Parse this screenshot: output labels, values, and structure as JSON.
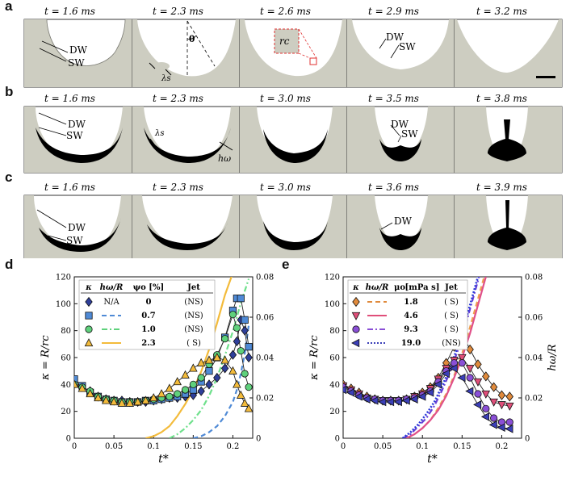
{
  "colors": {
    "liquid": "#cdcdc1",
    "film": "#000000",
    "frame": "#333333"
  },
  "panels": {
    "a": {
      "letter": "a",
      "frames": [
        {
          "time": "t = 1.6 ms",
          "labels": [
            "DW",
            "SW"
          ]
        },
        {
          "time": "t = 2.3 ms",
          "labels": [
            "θ",
            "λs"
          ]
        },
        {
          "time": "t = 2.6 ms",
          "labels": [
            "rc"
          ]
        },
        {
          "time": "t = 2.9 ms",
          "labels": [
            "DW",
            "SW"
          ]
        },
        {
          "time": "t = 3.2 ms",
          "labels": []
        }
      ]
    },
    "b": {
      "letter": "b",
      "frames": [
        {
          "time": "t = 1.6 ms",
          "labels": [
            "DW",
            "SW"
          ]
        },
        {
          "time": "t = 2.3 ms",
          "labels": [
            "λs",
            "hω"
          ]
        },
        {
          "time": "t = 3.0 ms",
          "labels": []
        },
        {
          "time": "t = 3.5 ms",
          "labels": [
            "DW",
            "SW"
          ]
        },
        {
          "time": "t = 3.8 ms",
          "labels": []
        }
      ]
    },
    "c": {
      "letter": "c",
      "frames": [
        {
          "time": "t = 1.6 ms",
          "labels": [
            "DW",
            "SW"
          ]
        },
        {
          "time": "t = 2.3 ms",
          "labels": []
        },
        {
          "time": "t = 3.0 ms",
          "labels": []
        },
        {
          "time": "t = 3.6 ms",
          "labels": [
            "DW"
          ]
        },
        {
          "time": "t = 3.9 ms",
          "labels": []
        }
      ]
    },
    "d": {
      "letter": "d"
    },
    "e": {
      "letter": "e"
    }
  },
  "chart_data": [
    {
      "panel": "d",
      "type": "line",
      "xlabel": "t*",
      "ylabel_left": "κ = R/rc",
      "ylabel_right": "hω/R",
      "xlim": [
        0,
        0.225
      ],
      "ylim_left": [
        0,
        120
      ],
      "ylim_right": [
        0,
        0.08
      ],
      "x_ticks": [
        "0",
        "0.05",
        "0.1",
        "0.15",
        "0.2"
      ],
      "y_ticks_left": [
        "0",
        "20",
        "40",
        "60",
        "80",
        "100",
        "120"
      ],
      "y_ticks_right": [
        "0",
        "0.02",
        "0.04",
        "0.06",
        "0.08"
      ],
      "legend": {
        "headers": [
          "κ",
          "hω/R",
          "ψo [%]",
          "Jet"
        ],
        "rows": [
          {
            "marker": "diamond",
            "color": "#2e3f9a",
            "line": "N/A",
            "psi": "0",
            "jet": "(NS)"
          },
          {
            "marker": "square",
            "color": "#4f8ad6",
            "line": "dash",
            "psi": "0.7",
            "jet": "(NS)"
          },
          {
            "marker": "circle",
            "color": "#5fd17c",
            "line": "dashdot",
            "psi": "1.0",
            "jet": "(NS)"
          },
          {
            "marker": "triangle",
            "color": "#f3bb3b",
            "line": "solid",
            "psi": "2.3",
            "jet": "( S)"
          }
        ]
      },
      "series": [
        {
          "name": "ψo = 0 (κ)",
          "marker": "diamond",
          "color": "#2e3f9a",
          "x": [
            0,
            0.01,
            0.02,
            0.03,
            0.04,
            0.05,
            0.06,
            0.07,
            0.08,
            0.09,
            0.1,
            0.11,
            0.12,
            0.13,
            0.14,
            0.15,
            0.16,
            0.17,
            0.18,
            0.19,
            0.2,
            0.205,
            0.21,
            0.215,
            0.22
          ],
          "y": [
            42,
            38,
            35,
            31,
            29,
            28,
            28,
            27,
            27,
            27,
            28,
            29,
            30,
            30,
            31,
            32,
            35,
            40,
            45,
            52,
            62,
            72,
            88,
            80,
            60
          ]
        },
        {
          "name": "ψo = 0.7 (κ)",
          "marker": "square",
          "color": "#4f8ad6",
          "x": [
            0,
            0.01,
            0.02,
            0.03,
            0.04,
            0.05,
            0.06,
            0.07,
            0.08,
            0.09,
            0.1,
            0.11,
            0.12,
            0.13,
            0.14,
            0.15,
            0.16,
            0.17,
            0.18,
            0.19,
            0.2,
            0.205,
            0.21,
            0.215,
            0.22
          ],
          "y": [
            44,
            39,
            34,
            31,
            29,
            28,
            27,
            27,
            27,
            28,
            28,
            29,
            30,
            31,
            33,
            36,
            42,
            50,
            60,
            75,
            95,
            104,
            104,
            88,
            68
          ]
        },
        {
          "name": "ψo = 1.0 (κ)",
          "marker": "circle",
          "color": "#5fd17c",
          "x": [
            0,
            0.01,
            0.02,
            0.03,
            0.04,
            0.05,
            0.06,
            0.07,
            0.08,
            0.09,
            0.1,
            0.11,
            0.12,
            0.13,
            0.14,
            0.15,
            0.16,
            0.17,
            0.18,
            0.19,
            0.2,
            0.205,
            0.21,
            0.215,
            0.22
          ],
          "y": [
            40,
            38,
            35,
            31,
            29,
            28,
            27,
            27,
            27,
            28,
            29,
            30,
            31,
            33,
            36,
            40,
            45,
            55,
            62,
            74,
            92,
            82,
            65,
            48,
            38
          ]
        },
        {
          "name": "ψo = 2.3 (κ)",
          "marker": "triangle",
          "color": "#f3bb3b",
          "x": [
            0,
            0.01,
            0.02,
            0.03,
            0.04,
            0.05,
            0.06,
            0.07,
            0.08,
            0.09,
            0.1,
            0.11,
            0.12,
            0.13,
            0.14,
            0.15,
            0.16,
            0.17,
            0.18,
            0.19,
            0.2,
            0.205,
            0.21,
            0.215,
            0.22
          ],
          "y": [
            40,
            37,
            33,
            30,
            28,
            27,
            26,
            26,
            27,
            28,
            30,
            33,
            37,
            42,
            47,
            52,
            56,
            58,
            60,
            58,
            50,
            40,
            32,
            26,
            22
          ]
        }
      ],
      "curves_right": [
        {
          "name": "ψo = 0.7 (hω/R)",
          "color": "#4f8ad6",
          "dash": "dash",
          "x": [
            0.15,
            0.16,
            0.17,
            0.18,
            0.19,
            0.2,
            0.205,
            0.21,
            0.215,
            0.22
          ],
          "y": [
            0,
            0.001,
            0.003,
            0.006,
            0.011,
            0.018,
            0.024,
            0.032,
            0.042,
            0.056
          ]
        },
        {
          "name": "ψo = 1.0 (hω/R)",
          "color": "#6fe08c",
          "dash": "dashdot",
          "x": [
            0.12,
            0.13,
            0.14,
            0.15,
            0.16,
            0.17,
            0.18,
            0.19,
            0.2,
            0.21,
            0.22
          ],
          "y": [
            0,
            0.002,
            0.005,
            0.009,
            0.014,
            0.021,
            0.03,
            0.041,
            0.053,
            0.067,
            0.079
          ]
        },
        {
          "name": "ψo = 2.3 (hω/R)",
          "color": "#f3bb3b",
          "dash": "solid",
          "x": [
            0.09,
            0.1,
            0.11,
            0.12,
            0.13,
            0.14,
            0.15,
            0.16,
            0.17,
            0.18,
            0.19,
            0.2
          ],
          "y": [
            0,
            0.001,
            0.003,
            0.006,
            0.011,
            0.017,
            0.024,
            0.033,
            0.044,
            0.057,
            0.071,
            0.082
          ]
        }
      ]
    },
    {
      "panel": "e",
      "type": "line",
      "xlabel": "t*",
      "ylabel_left": "κ = R/rc",
      "ylabel_right": "hω/R",
      "xlim": [
        0,
        0.225
      ],
      "ylim_left": [
        0,
        120
      ],
      "ylim_right": [
        0,
        0.08
      ],
      "x_ticks": [
        "0",
        "0.05",
        "0.1",
        "0.15",
        "0.2"
      ],
      "y_ticks_left": [
        "0",
        "20",
        "40",
        "60",
        "80",
        "100",
        "120"
      ],
      "y_ticks_right": [
        "0",
        "0.02",
        "0.04",
        "0.06",
        "0.08"
      ],
      "legend": {
        "headers": [
          "κ",
          "hω/R",
          "μo",
          "[mPa s]",
          "Jet"
        ],
        "rows": [
          {
            "marker": "diamond",
            "color": "#e08a3c",
            "line": "dash",
            "mu": "1.8",
            "jet": "( S)"
          },
          {
            "marker": "triangle-down",
            "color": "#e04f7a",
            "line": "solid",
            "mu": "4.6",
            "jet": "( S)"
          },
          {
            "marker": "circle",
            "color": "#8a4fd6",
            "line": "dashdot",
            "mu": "9.3",
            "jet": "( S)"
          },
          {
            "marker": "triangle-left",
            "color": "#3b3fb8",
            "line": "dotted",
            "mu": "19.0",
            "jet": "(NS)"
          }
        ]
      },
      "series": [
        {
          "name": "μo = 1.8 (κ)",
          "marker": "diamond",
          "color": "#e08a3c",
          "x": [
            0,
            0.01,
            0.02,
            0.03,
            0.04,
            0.05,
            0.06,
            0.07,
            0.08,
            0.09,
            0.1,
            0.11,
            0.12,
            0.13,
            0.14,
            0.15,
            0.16,
            0.17,
            0.18,
            0.19,
            0.2,
            0.21
          ],
          "y": [
            40,
            37,
            34,
            31,
            29,
            28,
            28,
            28,
            29,
            31,
            34,
            38,
            45,
            56,
            68,
            78,
            66,
            55,
            46,
            38,
            32,
            31
          ]
        },
        {
          "name": "μo = 4.6 (κ)",
          "marker": "triangle-down",
          "color": "#e04f7a",
          "x": [
            0,
            0.01,
            0.02,
            0.03,
            0.04,
            0.05,
            0.06,
            0.07,
            0.08,
            0.09,
            0.1,
            0.11,
            0.12,
            0.13,
            0.14,
            0.15,
            0.16,
            0.17,
            0.18,
            0.19,
            0.2,
            0.21
          ],
          "y": [
            39,
            36,
            33,
            30,
            29,
            28,
            28,
            28,
            29,
            31,
            33,
            37,
            44,
            52,
            58,
            60,
            52,
            42,
            33,
            27,
            25,
            24
          ]
        },
        {
          "name": "μo = 9.3 (κ)",
          "marker": "circle",
          "color": "#8a4fd6",
          "x": [
            0,
            0.01,
            0.02,
            0.03,
            0.04,
            0.05,
            0.06,
            0.07,
            0.08,
            0.09,
            0.1,
            0.11,
            0.12,
            0.13,
            0.14,
            0.15,
            0.16,
            0.17,
            0.18,
            0.19,
            0.2,
            0.21
          ],
          "y": [
            38,
            35,
            32,
            30,
            29,
            28,
            28,
            28,
            29,
            30,
            32,
            35,
            42,
            50,
            56,
            56,
            45,
            33,
            22,
            15,
            12,
            12
          ]
        },
        {
          "name": "μo = 19.0 (κ)",
          "marker": "triangle-left",
          "color": "#3b3fb8",
          "x": [
            0,
            0.01,
            0.02,
            0.03,
            0.04,
            0.05,
            0.06,
            0.07,
            0.08,
            0.09,
            0.1,
            0.11,
            0.12,
            0.13,
            0.14,
            0.15,
            0.16,
            0.17,
            0.18,
            0.19,
            0.2,
            0.21
          ],
          "y": [
            36,
            34,
            31,
            29,
            28,
            27,
            27,
            27,
            28,
            29,
            31,
            34,
            40,
            48,
            52,
            45,
            35,
            25,
            16,
            10,
            8,
            7
          ]
        }
      ],
      "curves_right": [
        {
          "name": "μo = 1.8 (hω/R)",
          "color": "#f0a050",
          "dash": "dash",
          "x": [
            0.08,
            0.09,
            0.1,
            0.11,
            0.12,
            0.13,
            0.14,
            0.15,
            0.16,
            0.17,
            0.18
          ],
          "y": [
            0,
            0.002,
            0.005,
            0.009,
            0.015,
            0.022,
            0.031,
            0.042,
            0.055,
            0.069,
            0.083
          ]
        },
        {
          "name": "μo = 4.6 (hω/R)",
          "color": "#e0508a",
          "dash": "solid",
          "x": [
            0.08,
            0.09,
            0.1,
            0.11,
            0.12,
            0.13,
            0.14,
            0.15,
            0.16,
            0.17,
            0.18
          ],
          "y": [
            0,
            0.002,
            0.005,
            0.009,
            0.014,
            0.021,
            0.03,
            0.04,
            0.052,
            0.066,
            0.08
          ]
        },
        {
          "name": "μo = 9.3 (hω/R)",
          "color": "#6a3fd6",
          "dash": "dashdot",
          "x": [
            0.075,
            0.085,
            0.095,
            0.105,
            0.115,
            0.125,
            0.135,
            0.145,
            0.155,
            0.165,
            0.175
          ],
          "y": [
            0,
            0.002,
            0.006,
            0.01,
            0.016,
            0.024,
            0.033,
            0.044,
            0.057,
            0.071,
            0.085
          ]
        },
        {
          "name": "μo = 19.0 (hω/R)",
          "color": "#2a38d8",
          "dash": "dotted",
          "x": [
            0.075,
            0.085,
            0.095,
            0.105,
            0.115,
            0.125,
            0.135,
            0.145,
            0.155,
            0.165,
            0.175
          ],
          "y": [
            0,
            0.003,
            0.007,
            0.012,
            0.018,
            0.026,
            0.035,
            0.046,
            0.059,
            0.073,
            0.087
          ]
        }
      ]
    }
  ]
}
